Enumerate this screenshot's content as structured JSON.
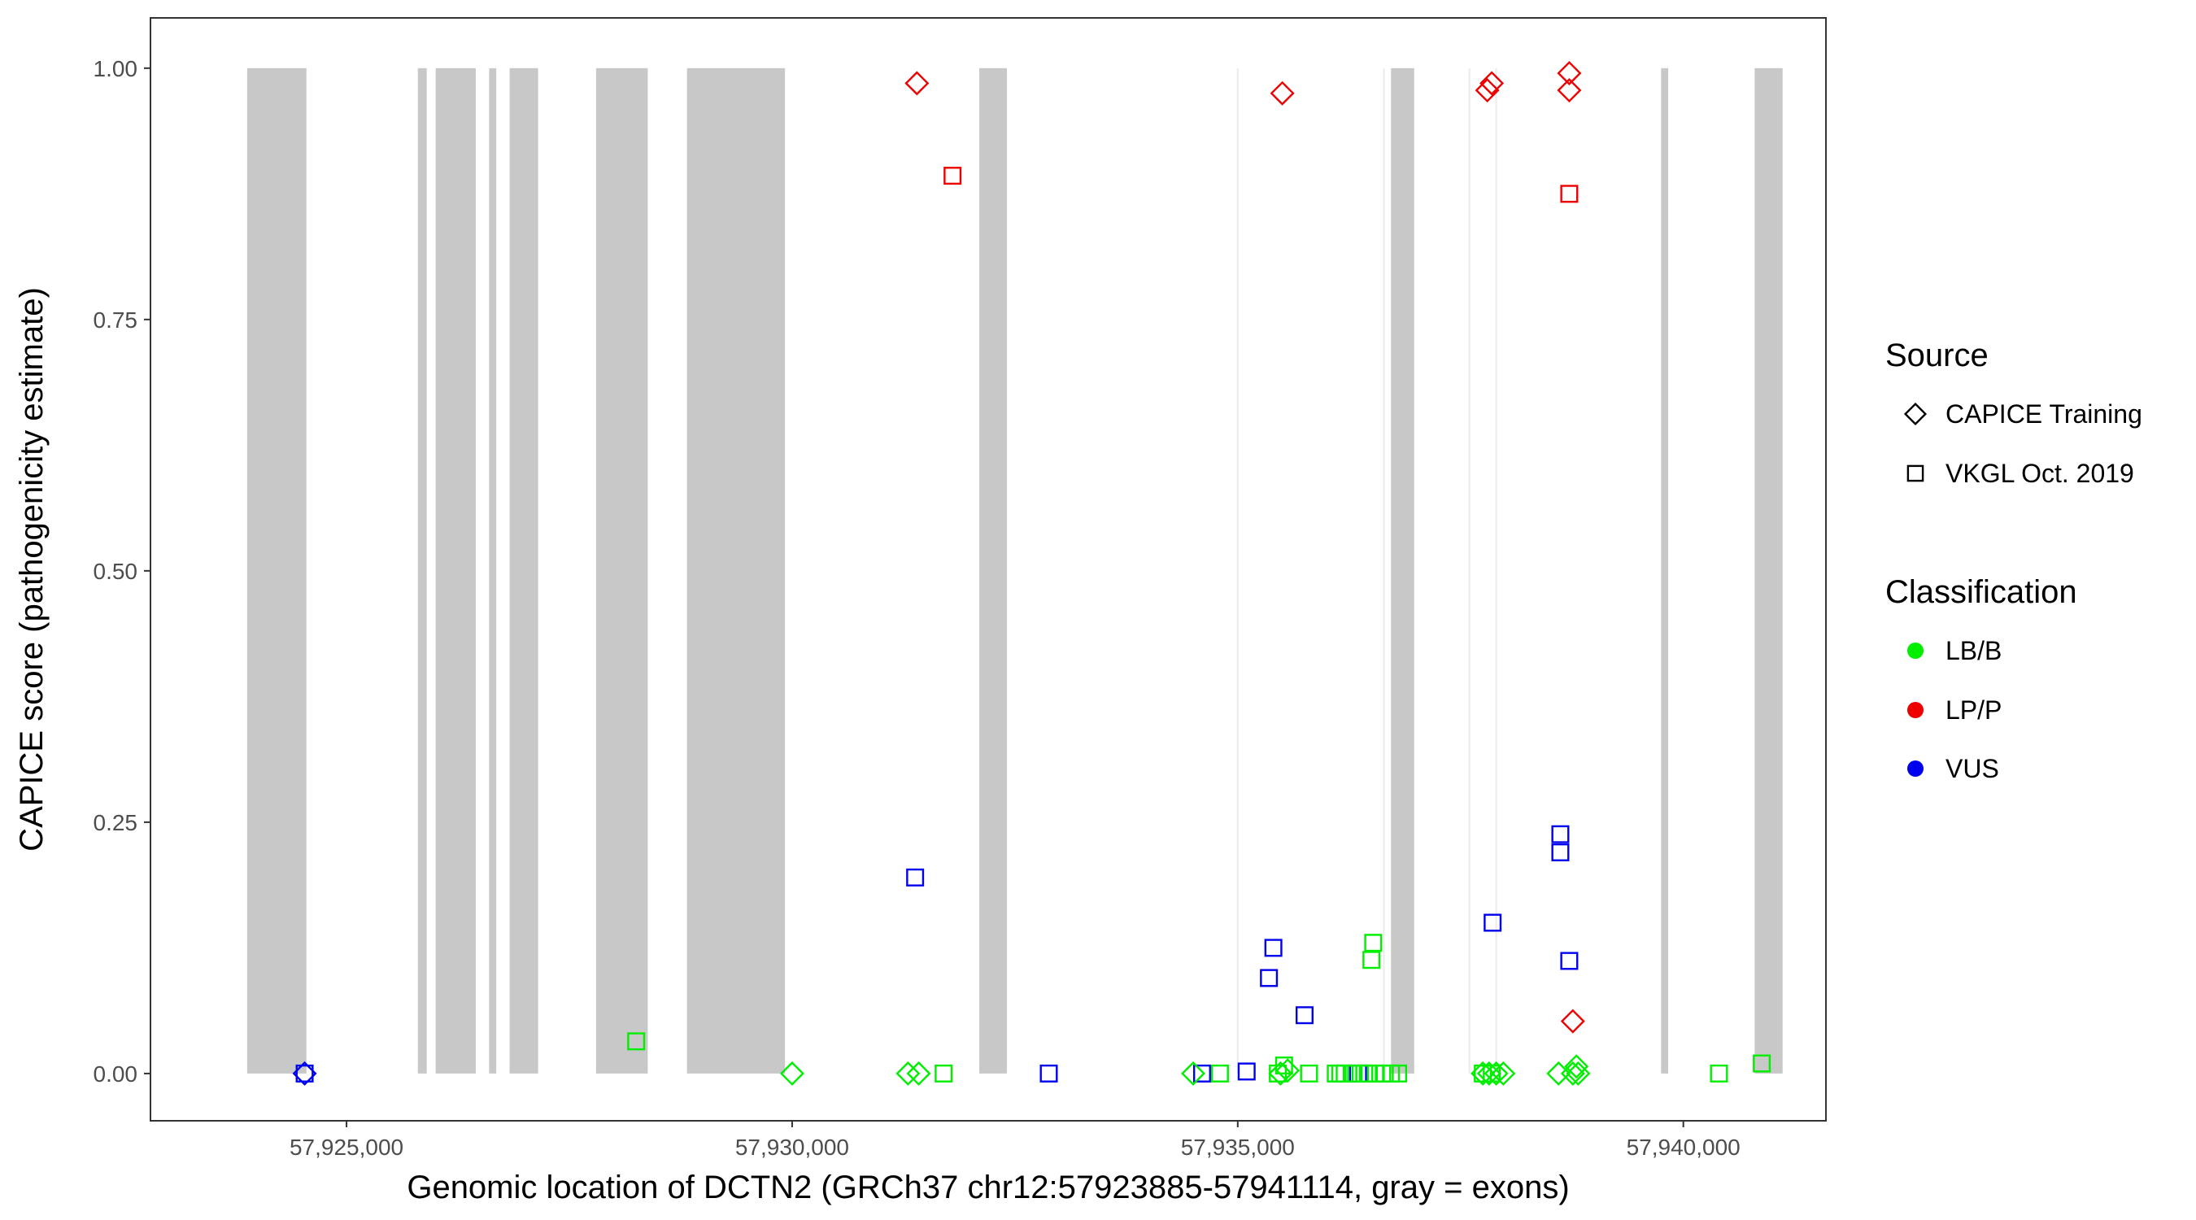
{
  "chart_data": {
    "type": "scatter",
    "xlabel": "Genomic location of DCTN2 (GRCh37 chr12:57923885-57941114, gray = exons)",
    "ylabel": "CAPICE score (pathogenicity estimate)",
    "xlim": [
      57922800,
      57941600
    ],
    "ylim": [
      -0.047,
      1.05
    ],
    "x_ticks": [
      {
        "value": 57925000,
        "label": "57,925,000"
      },
      {
        "value": 57930000,
        "label": "57,930,000"
      },
      {
        "value": 57935000,
        "label": "57,935,000"
      },
      {
        "value": 57940000,
        "label": "57,940,000"
      }
    ],
    "y_ticks": [
      {
        "value": 0.0,
        "label": "0.00"
      },
      {
        "value": 0.25,
        "label": "0.25"
      },
      {
        "value": 0.5,
        "label": "0.50"
      },
      {
        "value": 0.75,
        "label": "0.75"
      },
      {
        "value": 1.0,
        "label": "1.00"
      }
    ],
    "exon_color": "#c8c8c8",
    "exons": [
      [
        57923885,
        57924550
      ],
      [
        57925800,
        57925900
      ],
      [
        57926000,
        57926450
      ],
      [
        57926600,
        57926680
      ],
      [
        57926830,
        57927150
      ],
      [
        57927800,
        57928380
      ],
      [
        57928820,
        57929920
      ],
      [
        57932100,
        57932410
      ],
      [
        57936720,
        57936980
      ],
      [
        57939750,
        57939830
      ],
      [
        57940800,
        57941114
      ]
    ],
    "faint_lines": [
      57935000,
      57936640,
      57937600,
      57937900
    ],
    "faint_line_color": "#ebebeb",
    "legend": {
      "source_title": "Source",
      "source_entries": [
        {
          "label": "CAPICE Training",
          "shape": "diamond"
        },
        {
          "label": "VKGL Oct. 2019",
          "shape": "square"
        }
      ],
      "class_title": "Classification",
      "class_entries": [
        {
          "label": "LB/B",
          "color": "#00ee00"
        },
        {
          "label": "LP/P",
          "color": "#ee0000"
        },
        {
          "label": "VUS",
          "color": "#0000ee"
        }
      ]
    },
    "series": [
      {
        "source": "CAPICE Training",
        "classification": "LP/P",
        "points": [
          [
            57931400,
            0.985
          ],
          [
            57935500,
            0.975
          ],
          [
            57937800,
            0.978
          ],
          [
            57937850,
            0.985
          ],
          [
            57938720,
            0.995
          ],
          [
            57938720,
            0.978
          ],
          [
            57938760,
            0.052
          ]
        ]
      },
      {
        "source": "VKGL Oct. 2019",
        "classification": "LP/P",
        "points": [
          [
            57931800,
            0.893
          ],
          [
            57938720,
            0.875
          ]
        ]
      },
      {
        "source": "VKGL Oct. 2019",
        "classification": "VUS",
        "points": [
          [
            57924530,
            0.0
          ],
          [
            57931380,
            0.195
          ],
          [
            57932880,
            0.0
          ],
          [
            57934600,
            0.0
          ],
          [
            57935100,
            0.002
          ],
          [
            57935350,
            0.095
          ],
          [
            57935400,
            0.125
          ],
          [
            57935750,
            0.058
          ],
          [
            57936350,
            0.0
          ],
          [
            57937860,
            0.15
          ],
          [
            57938620,
            0.238
          ],
          [
            57938620,
            0.22
          ],
          [
            57938720,
            0.112
          ]
        ]
      },
      {
        "source": "CAPICE Training",
        "classification": "VUS",
        "points": [
          [
            57924530,
            0.0
          ]
        ]
      },
      {
        "source": "CAPICE Training",
        "classification": "LB/B",
        "points": [
          [
            57930000,
            0.0
          ],
          [
            57931300,
            0.0
          ],
          [
            57931420,
            0.0
          ],
          [
            57934500,
            0.0
          ],
          [
            57935480,
            0.0
          ],
          [
            57935560,
            0.003
          ],
          [
            57937750,
            0.0
          ],
          [
            57937820,
            0.0
          ],
          [
            57937900,
            0.0
          ],
          [
            57937980,
            0.0
          ],
          [
            57938600,
            0.0
          ],
          [
            57938760,
            0.0
          ],
          [
            57938800,
            0.007
          ],
          [
            57938820,
            0.0
          ]
        ]
      },
      {
        "source": "VKGL Oct. 2019",
        "classification": "LB/B",
        "points": [
          [
            57928250,
            0.032
          ],
          [
            57931700,
            0.0
          ],
          [
            57934800,
            0.0
          ],
          [
            57935450,
            0.0
          ],
          [
            57935520,
            0.008
          ],
          [
            57935800,
            0.0
          ],
          [
            57936100,
            0.0
          ],
          [
            57936150,
            0.0
          ],
          [
            57936200,
            0.0
          ],
          [
            57936300,
            0.0
          ],
          [
            57936420,
            0.0
          ],
          [
            57936460,
            0.0
          ],
          [
            57936500,
            0.113
          ],
          [
            57936520,
            0.13
          ],
          [
            57936550,
            0.0
          ],
          [
            57936650,
            0.0
          ],
          [
            57936720,
            0.0
          ],
          [
            57936800,
            0.0
          ],
          [
            57937750,
            0.0
          ],
          [
            57937850,
            0.0
          ],
          [
            57940400,
            0.0
          ],
          [
            57940880,
            0.01
          ]
        ]
      }
    ]
  }
}
